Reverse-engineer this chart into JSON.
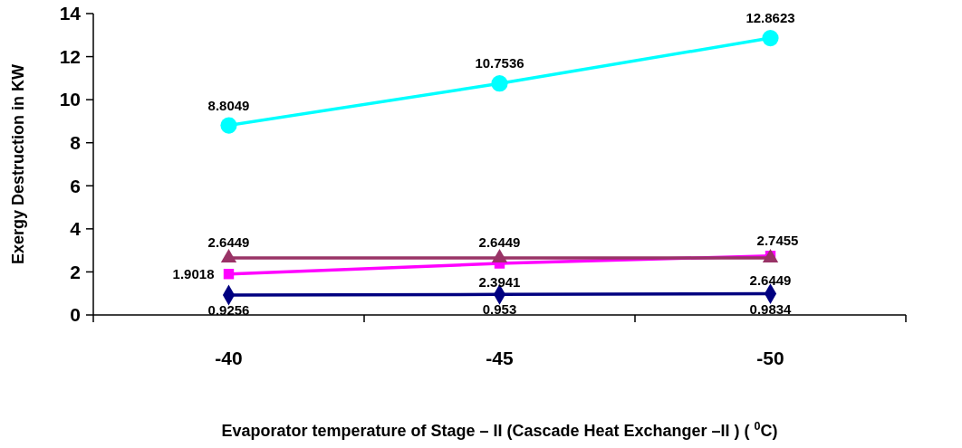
{
  "chart_data": {
    "type": "line",
    "categories": [
      "-40",
      "-45",
      "-50"
    ],
    "xlabel": "Evaporator temperature of Stage – II (Cascade Heat Exchanger –II ) ( $^{0}$C)",
    "ylabel": "Exergy Destruction in KW",
    "ylim": [
      0,
      14
    ],
    "yticks": [
      0,
      2,
      4,
      6,
      8,
      10,
      12,
      14
    ],
    "grid": false,
    "data_labels": true,
    "series": [
      {
        "color": "#000080",
        "marker": "diamond",
        "values": [
          0.9256,
          0.953,
          0.9834
        ]
      },
      {
        "color": "#ff00ff",
        "marker": "square",
        "values": [
          1.9018,
          2.3941,
          2.7455
        ]
      },
      {
        "color": "#993366",
        "marker": "triangle",
        "values": [
          2.6449,
          2.6449,
          2.6449
        ]
      },
      {
        "color": "#00ffff",
        "marker": "circle",
        "values": [
          8.8049,
          10.7536,
          12.8623
        ]
      }
    ]
  }
}
